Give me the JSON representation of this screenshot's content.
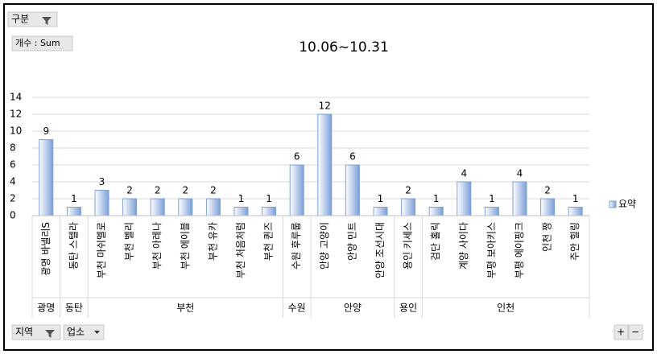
{
  "chart_data": {
    "type": "bar",
    "title": "10.06~10.31",
    "buttons": {
      "top_left": "구분",
      "value_field": "개수 : Sum",
      "axis_1": "지역",
      "axis_2": "업소"
    },
    "categories": [
      "광명 바넬리S",
      "동탄 스텔라",
      "부천 마쉬멜로",
      "부천 벨리",
      "부천 아레나",
      "부천 에이블",
      "부천 유카",
      "부천 처음처럼",
      "부천 퀸즈",
      "수원 후루룹",
      "안양 고양이",
      "안양 민트",
      "안양 조선시대",
      "용인 키세스",
      "검단 홀릭",
      "계양 사이다",
      "부평 보아키스",
      "부평 에이핑크",
      "인천 짱",
      "주안 힐링"
    ],
    "groups": [
      {
        "label": "광명",
        "span": 1
      },
      {
        "label": "동탄",
        "span": 1
      },
      {
        "label": "부천",
        "span": 7
      },
      {
        "label": "수원",
        "span": 1
      },
      {
        "label": "안양",
        "span": 3
      },
      {
        "label": "용인",
        "span": 1
      },
      {
        "label": "인천",
        "span": 6
      }
    ],
    "series": [
      {
        "name": "요약",
        "color": "#7b9fd8",
        "values": [
          9,
          1,
          3,
          2,
          2,
          2,
          2,
          1,
          1,
          6,
          12,
          6,
          1,
          2,
          1,
          4,
          1,
          4,
          2,
          1
        ]
      }
    ],
    "ylim": [
      0,
      14
    ],
    "yticks": [
      0,
      2,
      4,
      6,
      8,
      10,
      12,
      14
    ],
    "grid": true,
    "legend": "right"
  }
}
